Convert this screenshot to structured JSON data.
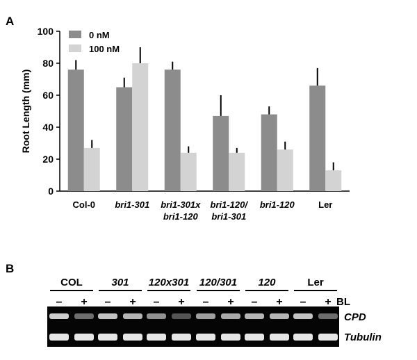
{
  "figure": {
    "panel_a_letter": "A",
    "panel_b_letter": "B"
  },
  "chart_data": {
    "type": "bar",
    "title": "",
    "xlabel": "",
    "ylabel": "Root Length (mm)",
    "ylim": [
      0,
      100
    ],
    "yticks": [
      0,
      20,
      40,
      60,
      80,
      100
    ],
    "categories": [
      {
        "label": [
          "Col-0"
        ],
        "italic": false
      },
      {
        "label": [
          "bri1-301"
        ],
        "italic": true
      },
      {
        "label": [
          "bri1-301x",
          "bri1-120"
        ],
        "italic": true
      },
      {
        "label": [
          "bri1-120/",
          "bri1-301"
        ],
        "italic": true
      },
      {
        "label": [
          "bri1-120"
        ],
        "italic": true
      },
      {
        "label": [
          "Ler"
        ],
        "italic": false
      }
    ],
    "series": [
      {
        "name": "0 nM",
        "color": "#8c8c8c",
        "values": [
          76,
          65,
          76,
          47,
          48,
          66
        ],
        "errors": [
          6,
          6,
          5,
          13,
          5,
          11
        ]
      },
      {
        "name": "100 nM",
        "color": "#d3d3d3",
        "values": [
          27,
          80,
          24,
          24,
          26,
          13
        ],
        "errors": [
          5,
          10,
          4,
          3,
          5,
          5
        ]
      }
    ],
    "legend_position": "top-left",
    "grid": false
  },
  "gel": {
    "groups": [
      {
        "label": "COL",
        "italic": false
      },
      {
        "label": "301",
        "italic": true
      },
      {
        "label": "120x301",
        "italic": true
      },
      {
        "label": "120/301",
        "italic": true
      },
      {
        "label": "120",
        "italic": true
      },
      {
        "label": "Ler",
        "italic": false
      }
    ],
    "treatment_signs": [
      "–",
      "+"
    ],
    "treatment_label": "BL",
    "rows": [
      {
        "label": "CPD",
        "intensities": [
          0.85,
          0.45,
          0.8,
          0.75,
          0.6,
          0.35,
          0.65,
          0.7,
          0.75,
          0.75,
          0.8,
          0.45
        ]
      },
      {
        "label": "Tubulin",
        "intensities": [
          0.95,
          0.95,
          0.95,
          0.95,
          0.95,
          0.95,
          0.95,
          0.95,
          0.95,
          0.95,
          0.95,
          0.95
        ]
      }
    ]
  }
}
